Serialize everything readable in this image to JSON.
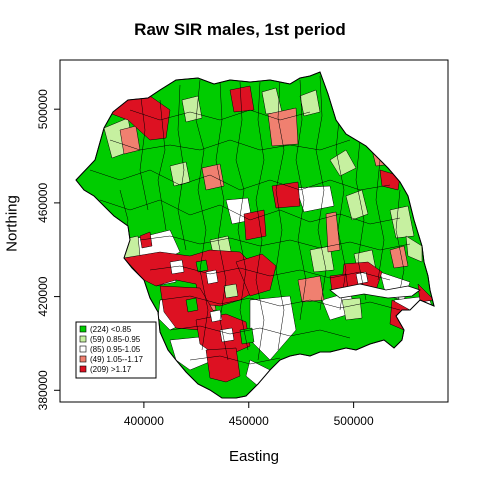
{
  "chart_data": {
    "type": "choropleth-map",
    "title": "Raw SIR males, 1st period",
    "xlabel": "Easting",
    "ylabel": "Northing",
    "xlim": [
      360000,
      545000
    ],
    "ylim": [
      375000,
      521000
    ],
    "x_ticks": [
      {
        "value": 400000,
        "label": "400000"
      },
      {
        "value": 450000,
        "label": "450000"
      },
      {
        "value": 500000,
        "label": "500000"
      }
    ],
    "y_ticks": [
      {
        "value": 380000,
        "label": "380000"
      },
      {
        "value": 420000,
        "label": "420000"
      },
      {
        "value": 460000,
        "label": "460000"
      },
      {
        "value": 500000,
        "label": "500000"
      }
    ],
    "legend": {
      "position": "bottom-left",
      "entries": [
        {
          "label": "(224) <0.85",
          "color": "#00cc00",
          "count": 224
        },
        {
          "label": "(59) 0.85-0.95",
          "color": "#c6f0a0",
          "count": 59
        },
        {
          "label": "(85) 0.95-1.05",
          "color": "#ffffff",
          "count": 85
        },
        {
          "label": "(49) 1.05--1.17",
          "color": "#f08070",
          "count": 49
        },
        {
          "label": "(209) >1.17",
          "color": "#dd1122",
          "count": 209
        }
      ]
    }
  }
}
